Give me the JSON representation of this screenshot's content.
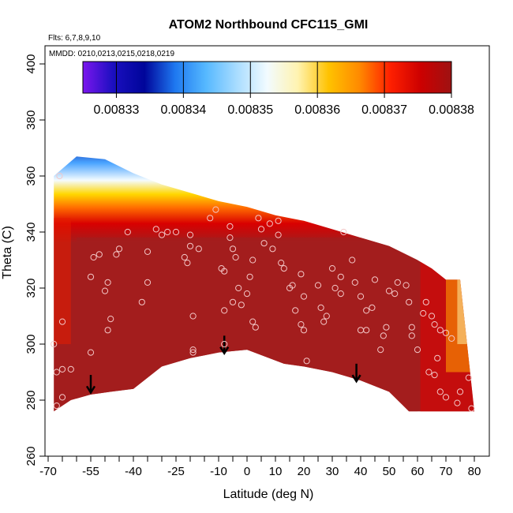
{
  "chart_data": {
    "type": "heatmap",
    "title": "ATOM2 Northbound CFC115_GMI",
    "flights_label": "Flts: 6,7,8,9,10",
    "dates_label": "MMDD: 0210,0213,0215,0218,0219",
    "xlabel": "Latitude (deg N)",
    "ylabel": "Theta (C)",
    "xlim": [
      -70,
      82
    ],
    "ylim": [
      260,
      405
    ],
    "x_ticks": [
      -70,
      -55,
      -40,
      -25,
      -10,
      0,
      10,
      20,
      30,
      40,
      50,
      60,
      70,
      80
    ],
    "x_minor_ticks": [
      -65,
      -60,
      -50,
      -45,
      -35,
      -30,
      -20,
      -15,
      -5,
      5,
      15,
      25,
      35,
      45,
      55,
      65,
      75
    ],
    "y_ticks": [
      260,
      280,
      300,
      320,
      340,
      360,
      380,
      400
    ],
    "colorbar": {
      "ticks": [
        "0.00833",
        "0.00834",
        "0.00835",
        "0.00836",
        "0.00837",
        "0.00838"
      ],
      "range": [
        0.008325,
        0.00838
      ]
    },
    "field_outline": {
      "top": [
        [
          -68,
          360
        ],
        [
          -60,
          367
        ],
        [
          -50,
          366
        ],
        [
          -40,
          361
        ],
        [
          -30,
          357
        ],
        [
          -20,
          354
        ],
        [
          -10,
          351
        ],
        [
          0,
          349
        ],
        [
          10,
          346
        ],
        [
          20,
          344
        ],
        [
          30,
          341
        ],
        [
          40,
          338
        ],
        [
          50,
          335
        ],
        [
          60,
          330
        ],
        [
          65,
          327
        ],
        [
          70,
          323
        ],
        [
          75,
          323
        ]
      ],
      "bottom": [
        [
          80,
          276
        ],
        [
          75,
          276
        ],
        [
          57,
          276
        ],
        [
          50,
          283
        ],
        [
          40,
          287
        ],
        [
          30,
          290
        ],
        [
          20,
          292
        ],
        [
          13,
          293
        ],
        [
          0,
          298
        ],
        [
          -10,
          297
        ],
        [
          -20,
          295
        ],
        [
          -30,
          292
        ],
        [
          -40,
          284
        ],
        [
          -48,
          283
        ],
        [
          -55,
          282
        ],
        [
          -62,
          280
        ],
        [
          -68,
          276
        ]
      ]
    },
    "profile_arrows": [
      {
        "x": -55,
        "y_top": 289,
        "y_bottom": 283
      },
      {
        "x": -8,
        "y_top": 303,
        "y_bottom": 297
      },
      {
        "x": 38.5,
        "y_top": 293,
        "y_bottom": 287
      }
    ],
    "sample_points": [
      [
        -66,
        360
      ],
      [
        -67,
        290
      ],
      [
        -68,
        300
      ],
      [
        -67,
        278
      ],
      [
        -65,
        281
      ],
      [
        -65,
        291
      ],
      [
        -62,
        291
      ],
      [
        -65,
        308
      ],
      [
        -55,
        297
      ],
      [
        -55,
        324
      ],
      [
        -54,
        331
      ],
      [
        -52,
        332
      ],
      [
        -50,
        319
      ],
      [
        -49,
        322
      ],
      [
        -49,
        305
      ],
      [
        -48,
        309
      ],
      [
        -46,
        332
      ],
      [
        -45,
        334
      ],
      [
        -42,
        340
      ],
      [
        -37,
        315
      ],
      [
        -35,
        322
      ],
      [
        -35,
        333
      ],
      [
        -32,
        341
      ],
      [
        -30,
        339
      ],
      [
        -28,
        340
      ],
      [
        -25,
        340
      ],
      [
        -22,
        331
      ],
      [
        -21,
        329
      ],
      [
        -20,
        339
      ],
      [
        -20,
        335
      ],
      [
        -19,
        310
      ],
      [
        -19,
        298
      ],
      [
        -19,
        297
      ],
      [
        -17,
        334
      ],
      [
        -13,
        345
      ],
      [
        -11,
        348
      ],
      [
        -6,
        338
      ],
      [
        -6,
        342
      ],
      [
        -5,
        334
      ],
      [
        -4,
        331
      ],
      [
        -9,
        327
      ],
      [
        -8,
        326
      ],
      [
        -8,
        312
      ],
      [
        -8,
        300
      ],
      [
        -5,
        315
      ],
      [
        -3,
        320
      ],
      [
        -2,
        314
      ],
      [
        2,
        308
      ],
      [
        3,
        306
      ],
      [
        0,
        318
      ],
      [
        1,
        324
      ],
      [
        2,
        330
      ],
      [
        4,
        345
      ],
      [
        5,
        341
      ],
      [
        6,
        336
      ],
      [
        8,
        343
      ],
      [
        9,
        334
      ],
      [
        11,
        344
      ],
      [
        11,
        339
      ],
      [
        12,
        329
      ],
      [
        13,
        327
      ],
      [
        15,
        320
      ],
      [
        16,
        321
      ],
      [
        17,
        312
      ],
      [
        19,
        307
      ],
      [
        20,
        305
      ],
      [
        21,
        294
      ],
      [
        19,
        325
      ],
      [
        20,
        317
      ],
      [
        25,
        321
      ],
      [
        26,
        313
      ],
      [
        27,
        308
      ],
      [
        28,
        310
      ],
      [
        30,
        327
      ],
      [
        31,
        320
      ],
      [
        33,
        318
      ],
      [
        33,
        324
      ],
      [
        34,
        340
      ],
      [
        37,
        330
      ],
      [
        38,
        322
      ],
      [
        40,
        317
      ],
      [
        40,
        305
      ],
      [
        42,
        312
      ],
      [
        42,
        305
      ],
      [
        44,
        313
      ],
      [
        45,
        323
      ],
      [
        47,
        298
      ],
      [
        48,
        303
      ],
      [
        49,
        306
      ],
      [
        50,
        319
      ],
      [
        52,
        318
      ],
      [
        53,
        322
      ],
      [
        56,
        321
      ],
      [
        57,
        315
      ],
      [
        58,
        306
      ],
      [
        58,
        303
      ],
      [
        60,
        298
      ],
      [
        62,
        311
      ],
      [
        63,
        315
      ],
      [
        65,
        310
      ],
      [
        66,
        307
      ],
      [
        68,
        305
      ],
      [
        70,
        304
      ],
      [
        72,
        302
      ],
      [
        64,
        290
      ],
      [
        66,
        289
      ],
      [
        67,
        295
      ],
      [
        68,
        283
      ],
      [
        70,
        281
      ],
      [
        74,
        279
      ],
      [
        75,
        283
      ],
      [
        78,
        288
      ],
      [
        79,
        277
      ]
    ]
  }
}
